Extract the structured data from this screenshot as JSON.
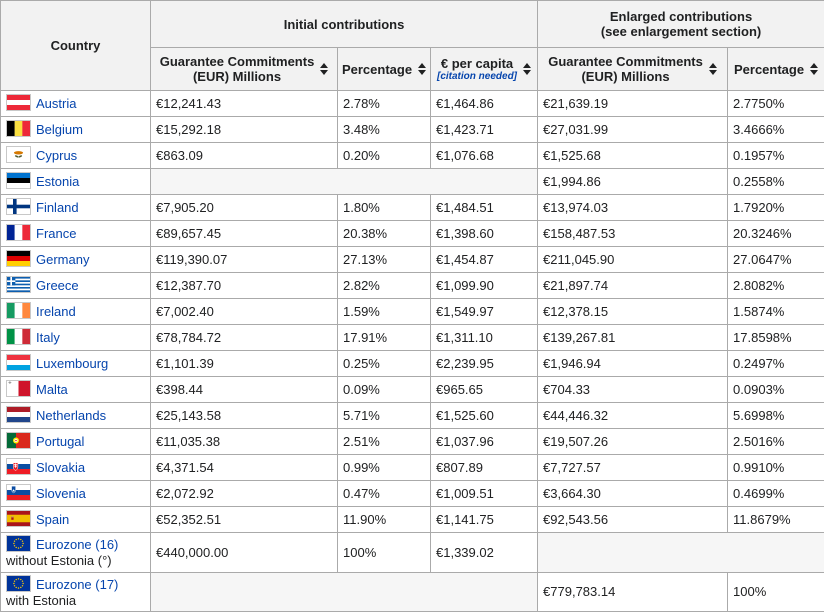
{
  "colors": {
    "link": "#0645ad",
    "header_bg": "#f2f2f2",
    "border": "#aaaaaa",
    "empty_cell_bg": "#f6f6f6",
    "text": "#202122"
  },
  "header": {
    "country": "Country",
    "initial_group": "Initial contributions",
    "enlarged_group_line1": "Enlarged contributions",
    "enlarged_group_line2": "(see enlargement section)",
    "guarantee_line1": "Guarantee Commitments",
    "guarantee_line2": "(EUR) Millions",
    "percentage": "Percentage",
    "per_capita": "€ per capita",
    "citation_needed": "[citation needed]"
  },
  "rows": [
    {
      "flag": "austria",
      "name": "Austria",
      "suffix": "",
      "initial": {
        "guarantee": "€12,241.43",
        "percentage": "2.78%",
        "per_capita": "€1,464.86"
      },
      "enlarged": {
        "guarantee": "€21,639.19",
        "percentage": "2.7750%"
      }
    },
    {
      "flag": "belgium",
      "name": "Belgium",
      "suffix": "",
      "initial": {
        "guarantee": "€15,292.18",
        "percentage": "3.48%",
        "per_capita": "€1,423.71"
      },
      "enlarged": {
        "guarantee": "€27,031.99",
        "percentage": "3.4666%"
      }
    },
    {
      "flag": "cyprus",
      "name": "Cyprus",
      "suffix": "",
      "initial": {
        "guarantee": "€863.09",
        "percentage": "0.20%",
        "per_capita": "€1,076.68"
      },
      "enlarged": {
        "guarantee": "€1,525.68",
        "percentage": "0.1957%"
      }
    },
    {
      "flag": "estonia",
      "name": "Estonia",
      "suffix": "",
      "initial": null,
      "enlarged": {
        "guarantee": "€1,994.86",
        "percentage": "0.2558%"
      }
    },
    {
      "flag": "finland",
      "name": "Finland",
      "suffix": "",
      "initial": {
        "guarantee": "€7,905.20",
        "percentage": "1.80%",
        "per_capita": "€1,484.51"
      },
      "enlarged": {
        "guarantee": "€13,974.03",
        "percentage": "1.7920%"
      }
    },
    {
      "flag": "france",
      "name": "France",
      "suffix": "",
      "initial": {
        "guarantee": "€89,657.45",
        "percentage": "20.38%",
        "per_capita": "€1,398.60"
      },
      "enlarged": {
        "guarantee": "€158,487.53",
        "percentage": "20.3246%"
      }
    },
    {
      "flag": "germany",
      "name": "Germany",
      "suffix": "",
      "initial": {
        "guarantee": "€119,390.07",
        "percentage": "27.13%",
        "per_capita": "€1,454.87"
      },
      "enlarged": {
        "guarantee": "€211,045.90",
        "percentage": "27.0647%"
      }
    },
    {
      "flag": "greece",
      "name": "Greece",
      "suffix": "",
      "initial": {
        "guarantee": "€12,387.70",
        "percentage": "2.82%",
        "per_capita": "€1,099.90"
      },
      "enlarged": {
        "guarantee": "€21,897.74",
        "percentage": "2.8082%"
      }
    },
    {
      "flag": "ireland",
      "name": "Ireland",
      "suffix": "",
      "initial": {
        "guarantee": "€7,002.40",
        "percentage": "1.59%",
        "per_capita": "€1,549.97"
      },
      "enlarged": {
        "guarantee": "€12,378.15",
        "percentage": "1.5874%"
      }
    },
    {
      "flag": "italy",
      "name": "Italy",
      "suffix": "",
      "initial": {
        "guarantee": "€78,784.72",
        "percentage": "17.91%",
        "per_capita": "€1,311.10"
      },
      "enlarged": {
        "guarantee": "€139,267.81",
        "percentage": "17.8598%"
      }
    },
    {
      "flag": "luxembourg",
      "name": "Luxembourg",
      "suffix": "",
      "initial": {
        "guarantee": "€1,101.39",
        "percentage": "0.25%",
        "per_capita": "€2,239.95"
      },
      "enlarged": {
        "guarantee": "€1,946.94",
        "percentage": "0.2497%"
      }
    },
    {
      "flag": "malta",
      "name": "Malta",
      "suffix": "",
      "initial": {
        "guarantee": "€398.44",
        "percentage": "0.09%",
        "per_capita": "€965.65"
      },
      "enlarged": {
        "guarantee": "€704.33",
        "percentage": "0.0903%"
      }
    },
    {
      "flag": "netherlands",
      "name": "Netherlands",
      "suffix": "",
      "initial": {
        "guarantee": "€25,143.58",
        "percentage": "5.71%",
        "per_capita": "€1,525.60"
      },
      "enlarged": {
        "guarantee": "€44,446.32",
        "percentage": "5.6998%"
      }
    },
    {
      "flag": "portugal",
      "name": "Portugal",
      "suffix": "",
      "initial": {
        "guarantee": "€11,035.38",
        "percentage": "2.51%",
        "per_capita": "€1,037.96"
      },
      "enlarged": {
        "guarantee": "€19,507.26",
        "percentage": "2.5016%"
      }
    },
    {
      "flag": "slovakia",
      "name": "Slovakia",
      "suffix": "",
      "initial": {
        "guarantee": "€4,371.54",
        "percentage": "0.99%",
        "per_capita": "€807.89"
      },
      "enlarged": {
        "guarantee": "€7,727.57",
        "percentage": "0.9910%"
      }
    },
    {
      "flag": "slovenia",
      "name": "Slovenia",
      "suffix": "",
      "initial": {
        "guarantee": "€2,072.92",
        "percentage": "0.47%",
        "per_capita": "€1,009.51"
      },
      "enlarged": {
        "guarantee": "€3,664.30",
        "percentage": "0.4699%"
      }
    },
    {
      "flag": "spain",
      "name": "Spain",
      "suffix": "",
      "initial": {
        "guarantee": "€52,352.51",
        "percentage": "11.90%",
        "per_capita": "€1,141.75"
      },
      "enlarged": {
        "guarantee": "€92,543.56",
        "percentage": "11.8679%"
      }
    },
    {
      "flag": "eu",
      "name": "Eurozone (16)",
      "suffix": "without Estonia (°)",
      "initial": {
        "guarantee": "€440,000.00",
        "percentage": "100%",
        "per_capita": "€1,339.02"
      },
      "enlarged": null
    },
    {
      "flag": "eu",
      "name": "Eurozone (17)",
      "suffix": "with Estonia",
      "initial": null,
      "enlarged": {
        "guarantee": "€779,783.14",
        "percentage": "100%"
      }
    }
  ]
}
